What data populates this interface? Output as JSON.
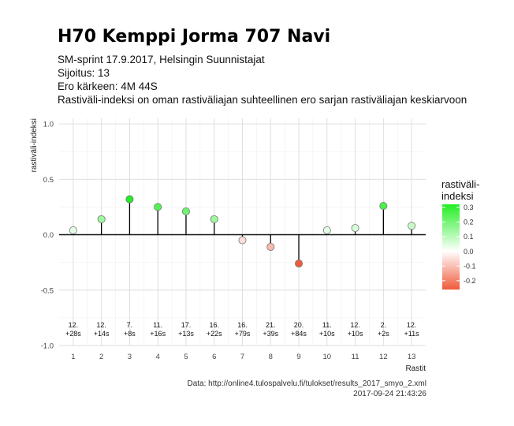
{
  "header": {
    "title": "H70 Kemppi Jorma 707 Navi",
    "subtitle_lines": [
      "SM-sprint 17.9.2017, Helsingin Suunnistajat",
      "Sijoitus: 13",
      "Ero kärkeen: 4M 44S",
      "Rastiväli-indeksi on oman rastiväliajan suhteellinen ero sarjan rastiväliajan keskiarvoon"
    ]
  },
  "caption": {
    "line1": "Data: http://online4.tulospalvelu.fi/tulokset/results_2017_smyo_2.xml",
    "line2": "2017-09-24 21:43:26"
  },
  "legend": {
    "title_line1": "rastiväli-",
    "title_line2": "indeksi",
    "ticks": [
      "0.3",
      "0.2",
      "0.1",
      "0.0",
      "-0.1",
      "-0.2"
    ],
    "tick_values": [
      0.3,
      0.2,
      0.1,
      0.0,
      -0.1,
      -0.2
    ],
    "range": [
      -0.26,
      0.32
    ],
    "colors": {
      "high": "#22ee22",
      "mid": "#ffffff",
      "low": "#f05a3c"
    }
  },
  "chart_data": {
    "type": "scatter",
    "style": "lollipop",
    "xlabel": "Rastit",
    "ylabel": "rastiväli-indeksi",
    "xlim": [
      0.5,
      13.5
    ],
    "ylim": [
      -1.0,
      1.05
    ],
    "x_ticks": [
      1,
      2,
      3,
      4,
      5,
      6,
      7,
      8,
      9,
      10,
      11,
      12,
      13
    ],
    "y_ticks": [
      -1.0,
      -0.5,
      0.0,
      0.5,
      1.0
    ],
    "y_tick_labels": [
      "-1.0",
      "-0.5",
      "0.0",
      "0.5",
      "1.0"
    ],
    "grid": true,
    "points": [
      {
        "x": 1,
        "y": 0.04,
        "rank": "12.",
        "diff": "+28s"
      },
      {
        "x": 2,
        "y": 0.14,
        "rank": "12.",
        "diff": "+14s"
      },
      {
        "x": 3,
        "y": 0.32,
        "rank": "7.",
        "diff": "+8s"
      },
      {
        "x": 4,
        "y": 0.25,
        "rank": "11.",
        "diff": "+16s"
      },
      {
        "x": 5,
        "y": 0.21,
        "rank": "17.",
        "diff": "+13s"
      },
      {
        "x": 6,
        "y": 0.14,
        "rank": "16.",
        "diff": "+22s"
      },
      {
        "x": 7,
        "y": -0.05,
        "rank": "16.",
        "diff": "+79s"
      },
      {
        "x": 8,
        "y": -0.11,
        "rank": "21.",
        "diff": "+39s"
      },
      {
        "x": 9,
        "y": -0.26,
        "rank": "20.",
        "diff": "+84s"
      },
      {
        "x": 10,
        "y": 0.04,
        "rank": "11.",
        "diff": "+10s"
      },
      {
        "x": 11,
        "y": 0.06,
        "rank": "12.",
        "diff": "+10s"
      },
      {
        "x": 12,
        "y": 0.26,
        "rank": "2.",
        "diff": "+2s"
      },
      {
        "x": 13,
        "y": 0.08,
        "rank": "12.",
        "diff": "+11s"
      }
    ]
  }
}
